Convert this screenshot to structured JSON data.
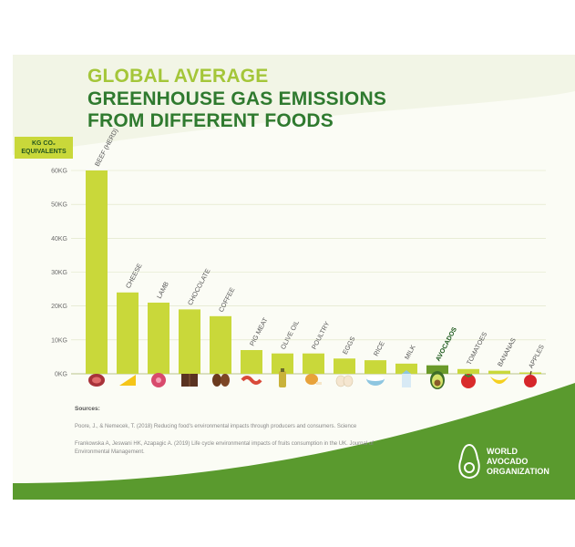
{
  "title": {
    "line1": "GLOBAL AVERAGE",
    "line2": "GREENHOUSE GAS EMISSIONS",
    "line3": "FROM DIFFERENT FOODS"
  },
  "unit_badge": {
    "line1": "KG CO₂",
    "line2": "EQUIVALENTS"
  },
  "chart_data": {
    "type": "bar",
    "categories": [
      "BEEF (HERD)",
      "CHEESE",
      "LAMB",
      "CHOCOLATE",
      "COFFEE",
      "PIG MEAT",
      "OLIVE OIL",
      "POULTRY",
      "EGGS",
      "RICE",
      "MILK",
      "AVOCADOS",
      "TOMATOES",
      "BANANAS",
      "APPLES"
    ],
    "values": [
      60,
      24,
      21,
      19,
      17,
      7,
      6,
      6,
      4.5,
      4,
      3,
      2.5,
      1.4,
      0.9,
      0.4
    ],
    "yticks": [
      "0KG",
      "10KG",
      "20KG",
      "30KG",
      "40KG",
      "50KG",
      "60KG"
    ],
    "ylim": [
      0,
      60
    ],
    "highlight": "AVOCADOS",
    "colors": {
      "bar": "#c9d83a",
      "bar_highlight": "#6a9a2a",
      "label": "#555555",
      "label_highlight": "#1e5a1e",
      "grid": "#dde3c4"
    }
  },
  "icons": [
    "steak-icon",
    "cheese-icon",
    "lamb-icon",
    "chocolate-icon",
    "coffee-beans-icon",
    "bacon-icon",
    "olive-oil-icon",
    "chicken-leg-icon",
    "eggs-icon",
    "rice-bowl-icon",
    "milk-carton-icon",
    "avocado-icon",
    "tomato-icon",
    "banana-icon",
    "apple-icon"
  ],
  "sources": {
    "heading": "Sources:",
    "line1": "Poore, J., & Nemecek, T. (2018) Reducing food's environmental impacts through producers and consumers. Science",
    "line2": "Frankowska A, Jeswani HK, Azapagic A. (2019) Life cycle environmental impacts of fruits consumption in the UK. Journal of Environmental Management."
  },
  "organization": {
    "line1": "WORLD",
    "line2": "AVOCADO",
    "line3": "ORGANIZATION"
  },
  "colors": {
    "background": "#f2f5e6",
    "title_light": "#a4c639",
    "title_dark": "#2f7a2f",
    "wave_green": "#5a9a2e"
  }
}
